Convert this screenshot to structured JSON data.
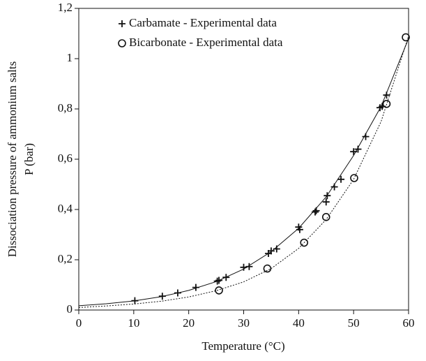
{
  "chart_data": {
    "type": "scatter",
    "xlabel": "Temperature (°C)",
    "ylabel": [
      "Dissociation pressure of ammonium salts",
      "P (bar)"
    ],
    "xlim": [
      0,
      60
    ],
    "ylim": [
      0,
      1.2
    ],
    "xticks": [
      0,
      10,
      20,
      30,
      40,
      50,
      60
    ],
    "yticks": [
      0,
      {
        "value": 0.2,
        "label": "0,2"
      },
      {
        "value": 0.4,
        "label": "0,4"
      },
      {
        "value": 0.6,
        "label": "0,6"
      },
      {
        "value": 0.8,
        "label": "0,8"
      },
      1,
      {
        "value": 1.2,
        "label": "1,2"
      }
    ],
    "legend": "upper left",
    "color": "#111111",
    "series": [
      {
        "name": "Carbamate - Experimental data",
        "marker": "plus",
        "x": [
          10.2,
          15.2,
          18,
          21.3,
          25.2,
          25.5,
          26.8,
          30,
          31,
          34.5,
          35,
          36,
          40,
          40.2,
          43,
          43.2,
          45,
          45.2,
          46.5,
          47.7,
          50,
          50.8,
          52.2,
          54.8,
          55.2,
          56
        ],
        "values": [
          0.037,
          0.055,
          0.068,
          0.09,
          0.115,
          0.118,
          0.13,
          0.17,
          0.173,
          0.225,
          0.235,
          0.243,
          0.33,
          0.32,
          0.39,
          0.395,
          0.43,
          0.455,
          0.49,
          0.52,
          0.63,
          0.64,
          0.69,
          0.805,
          0.81,
          0.855
        ]
      },
      {
        "name": "Bicarbonate - Experimental data",
        "marker": "circle",
        "x": [
          25.5,
          34.3,
          41,
          45,
          50.1,
          56,
          59.5
        ],
        "values": [
          0.078,
          0.165,
          0.268,
          0.37,
          0.525,
          0.82,
          1.085
        ]
      }
    ],
    "fits": [
      {
        "style": "solid",
        "x": [
          0,
          5,
          10,
          15,
          20,
          25,
          30,
          35,
          40,
          45,
          50,
          55,
          60
        ],
        "values": [
          0.017,
          0.025,
          0.036,
          0.053,
          0.078,
          0.113,
          0.163,
          0.232,
          0.325,
          0.45,
          0.615,
          0.81,
          1.08
        ]
      },
      {
        "style": "dotted",
        "x": [
          0,
          5,
          10,
          15,
          20,
          25,
          30,
          35,
          40,
          45,
          50,
          55,
          60
        ],
        "values": [
          0.01,
          0.016,
          0.024,
          0.035,
          0.052,
          0.077,
          0.112,
          0.165,
          0.245,
          0.36,
          0.52,
          0.75,
          1.09
        ]
      }
    ]
  }
}
